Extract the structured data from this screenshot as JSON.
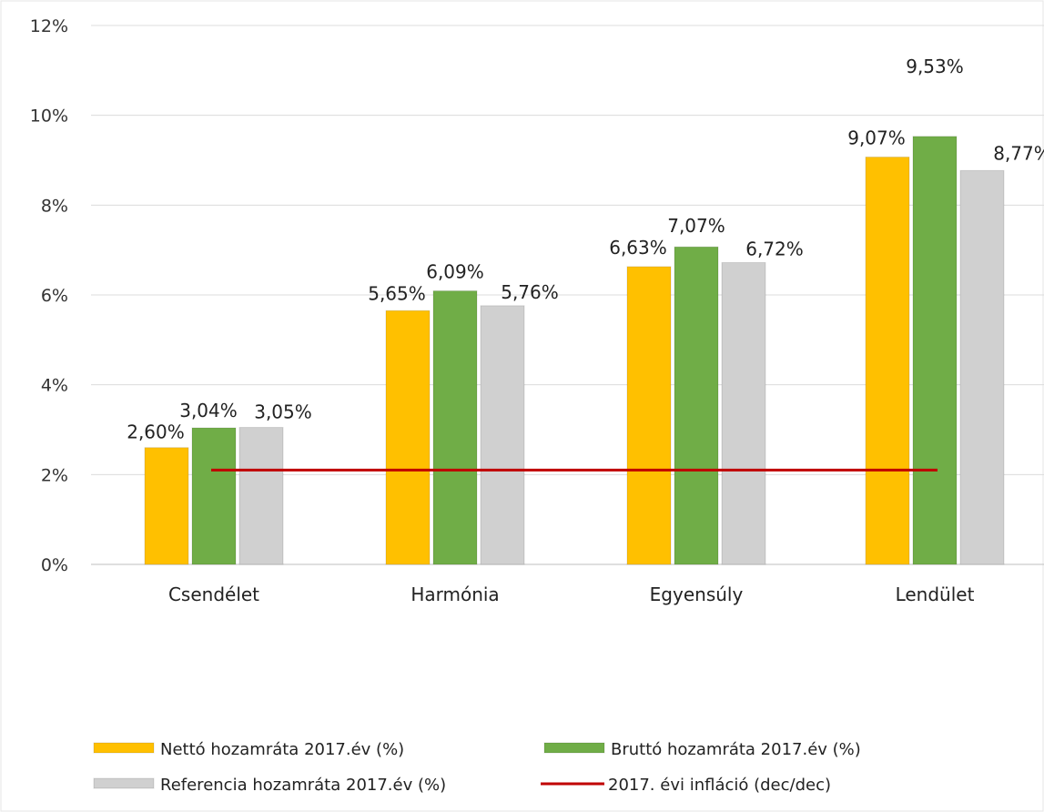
{
  "chart_data": {
    "type": "bar",
    "categories": [
      "Csendélet",
      "Harmónia",
      "Egyensúly",
      "Lendület"
    ],
    "series": [
      {
        "name": "Nettó hozamráta 2017.év (%)",
        "color": "#FFC000",
        "values": [
          2.6,
          5.65,
          6.63,
          9.07
        ],
        "labels": [
          "2,60%",
          "5,65%",
          "6,63%",
          "9,07%"
        ]
      },
      {
        "name": "Bruttó hozamráta 2017.év (%)",
        "color": "#70AD47",
        "values": [
          3.04,
          6.09,
          7.07,
          9.53
        ],
        "labels": [
          "3,04%",
          "6,09%",
          "7,07%",
          "9,53%"
        ]
      },
      {
        "name": "Referencia hozamráta 2017.év (%)",
        "color": "#D0D0D0",
        "values": [
          3.05,
          5.76,
          6.72,
          8.77
        ],
        "labels": [
          "3,05%",
          "5,76%",
          "6,72%",
          "8,77%"
        ]
      }
    ],
    "line_series": {
      "name": "2017. évi infláció (dec/dec)",
      "color": "#C00000",
      "value": 2.1
    },
    "ylim": [
      0,
      12
    ],
    "y_ticks": [
      0,
      2,
      4,
      6,
      8,
      10,
      12
    ],
    "y_tick_labels": [
      "0%",
      "2%",
      "4%",
      "6%",
      "8%",
      "10%",
      "12%"
    ],
    "grid": true,
    "legend_position": "bottom"
  }
}
